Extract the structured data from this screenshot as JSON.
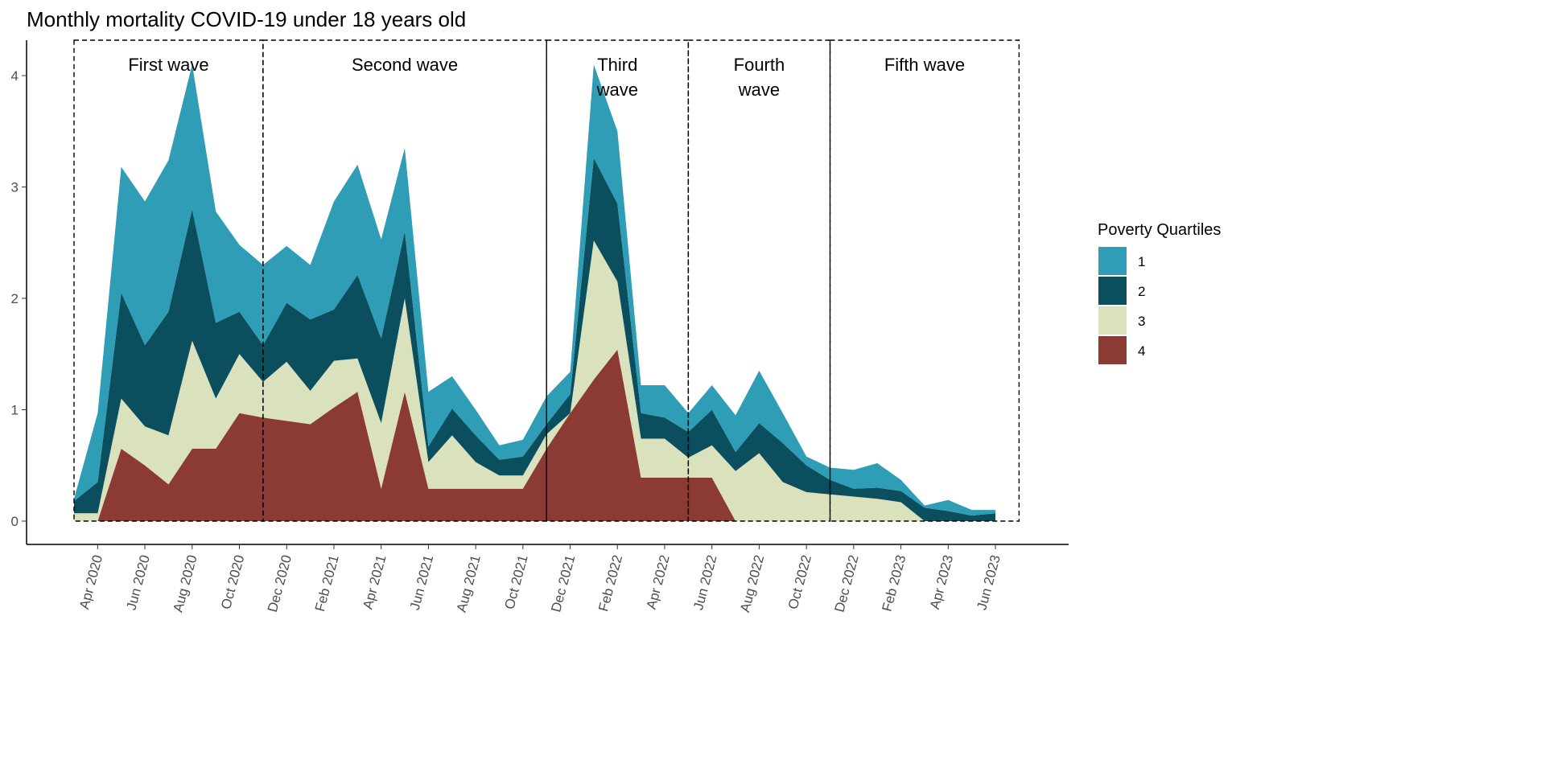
{
  "chart_data": {
    "type": "area",
    "stacked": true,
    "title": "Monthly mortality COVID-19 under 18 years old",
    "xlabel": "",
    "ylabel": "",
    "ylim": [
      0,
      4.3
    ],
    "yticks": [
      "0",
      "1",
      "2",
      "3",
      "4"
    ],
    "months": [
      "Mar 2020",
      "Apr 2020",
      "May 2020",
      "Jun 2020",
      "Jul 2020",
      "Aug 2020",
      "Sep 2020",
      "Oct 2020",
      "Nov 2020",
      "Dec 2020",
      "Jan 2021",
      "Feb 2021",
      "Mar 2021",
      "Apr 2021",
      "May 2021",
      "Jun 2021",
      "Jul 2021",
      "Aug 2021",
      "Sep 2021",
      "Oct 2021",
      "Nov 2021",
      "Dec 2021",
      "Jan 2022",
      "Feb 2022",
      "Mar 2022",
      "Apr 2022",
      "May 2022",
      "Jun 2022",
      "Jul 2022",
      "Aug 2022",
      "Sep 2022",
      "Oct 2022",
      "Nov 2022",
      "Dec 2022",
      "Jan 2023",
      "Feb 2023",
      "Mar 2023",
      "Apr 2023",
      "May 2023",
      "Jun 2023"
    ],
    "xtick_labels": [
      "Apr 2020",
      "Jun 2020",
      "Aug 2020",
      "Oct 2020",
      "Dec 2020",
      "Feb 2021",
      "Apr 2021",
      "Jun 2021",
      "Aug 2021",
      "Oct 2021",
      "Dec 2021",
      "Feb 2022",
      "Apr 2022",
      "Jun 2022",
      "Aug 2022",
      "Oct 2022",
      "Dec 2022",
      "Feb 2023",
      "Apr 2023",
      "Jun 2023"
    ],
    "legend": {
      "title": "Poverty Quartiles",
      "position": "right"
    },
    "series": [
      {
        "name": "4",
        "color": "#8B3A34",
        "values": [
          0,
          0,
          0.65,
          0.5,
          0.33,
          0.65,
          0.65,
          0.97,
          0.93,
          0.9,
          0.87,
          1.02,
          1.16,
          0.29,
          1.16,
          0.29,
          0.29,
          0.29,
          0.29,
          0.29,
          0.65,
          0.97,
          1.27,
          1.54,
          0.39,
          0.39,
          0.39,
          0.39,
          0,
          0,
          0,
          0,
          0,
          0,
          0,
          0,
          0,
          0,
          0,
          0
        ]
      },
      {
        "name": "3",
        "color": "#D9E1BD",
        "values": [
          0.07,
          0.07,
          0.45,
          0.35,
          0.44,
          0.97,
          0.45,
          0.53,
          0.32,
          0.53,
          0.3,
          0.42,
          0.3,
          0.59,
          0.84,
          0.24,
          0.48,
          0.24,
          0.12,
          0.12,
          0.13,
          0,
          1.25,
          0.61,
          0.35,
          0.35,
          0.18,
          0.29,
          0.45,
          0.61,
          0.35,
          0.26,
          0.24,
          0.22,
          0.2,
          0.17,
          0,
          0,
          0,
          0
        ]
      },
      {
        "name": "2",
        "color": "#0B4F5F",
        "values": [
          0.11,
          0.28,
          0.95,
          0.73,
          1.11,
          1.18,
          0.68,
          0.38,
          0.33,
          0.53,
          0.64,
          0.46,
          0.75,
          0.76,
          0.6,
          0.14,
          0.24,
          0.24,
          0.14,
          0.17,
          0.09,
          0.17,
          0.74,
          0.7,
          0.23,
          0.19,
          0.23,
          0.32,
          0.17,
          0.27,
          0.35,
          0.24,
          0.13,
          0.07,
          0.1,
          0.1,
          0.12,
          0.09,
          0.05,
          0.07
        ]
      },
      {
        "name": "1",
        "color": "#2E9DB5",
        "values": [
          0.02,
          0.62,
          1.13,
          1.29,
          1.36,
          1.3,
          1.0,
          0.6,
          0.72,
          0.51,
          0.49,
          0.97,
          0.99,
          0.89,
          0.75,
          0.49,
          0.29,
          0.23,
          0.13,
          0.15,
          0.25,
          0.2,
          0.84,
          0.65,
          0.25,
          0.29,
          0.17,
          0.22,
          0.33,
          0.47,
          0.27,
          0.08,
          0.11,
          0.17,
          0.22,
          0.1,
          0.02,
          0.1,
          0.05,
          0.03
        ]
      }
    ],
    "annotations": [
      {
        "lines": [
          "First wave"
        ],
        "from": "Mar 2020",
        "to": "Nov 2020"
      },
      {
        "lines": [
          "Second wave"
        ],
        "from": "Nov 2020",
        "to": "Nov 2021"
      },
      {
        "lines": [
          "Third",
          "wave"
        ],
        "from": "Nov 2021",
        "to": "May 2022"
      },
      {
        "lines": [
          "Fourth",
          "wave"
        ],
        "from": "May 2022",
        "to": "Nov 2022"
      },
      {
        "lines": [
          "Fifth wave"
        ],
        "from": "Nov 2022",
        "to": "Jul 2023"
      }
    ]
  }
}
